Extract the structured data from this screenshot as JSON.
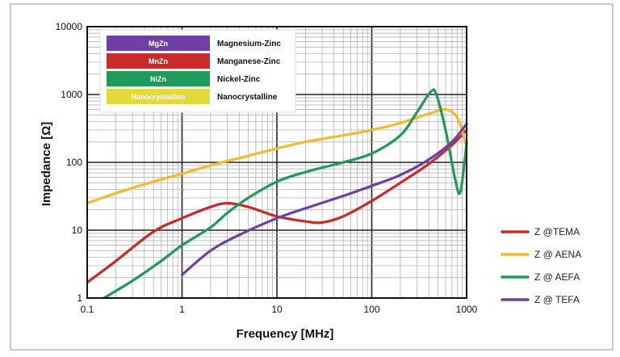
{
  "chart_data": {
    "type": "line",
    "xlabel": "Frequency [MHz]",
    "ylabel": "Impedance [Ω]",
    "x_scale": "log",
    "y_scale": "log",
    "xlim": [
      0.1,
      1000
    ],
    "ylim": [
      1,
      10000
    ],
    "x_ticks": [
      "0.1",
      "1",
      "10",
      "100",
      "1000"
    ],
    "y_ticks": [
      "1",
      "10",
      "100",
      "1000",
      "10000"
    ],
    "grid": true,
    "legend_position": "right",
    "material_legend": [
      {
        "code": "MgZn",
        "name": "Magnesium-Zinc",
        "color": "#6f3fa3"
      },
      {
        "code": "MnZn",
        "name": "Manganese-Zinc",
        "color": "#c92a2a"
      },
      {
        "code": "NiZn",
        "name": "Nickel-Zinc",
        "color": "#1f9a5b"
      },
      {
        "code": "Nanocrystalline",
        "name": "Nanocrystalline",
        "color": "#e2d93a"
      }
    ],
    "series": [
      {
        "name": "Z @TEMA",
        "color": "#c92a2a",
        "points": [
          [
            0.1,
            1.7
          ],
          [
            0.2,
            3.5
          ],
          [
            0.5,
            9.5
          ],
          [
            1,
            15
          ],
          [
            2,
            22
          ],
          [
            3,
            25
          ],
          [
            5,
            22
          ],
          [
            10,
            16
          ],
          [
            20,
            13.5
          ],
          [
            30,
            13
          ],
          [
            50,
            16
          ],
          [
            100,
            27
          ],
          [
            200,
            50
          ],
          [
            400,
            95
          ],
          [
            700,
            180
          ],
          [
            1000,
            300
          ]
        ]
      },
      {
        "name": "Z @ AENA",
        "color": "#f5b82e",
        "points": [
          [
            0.1,
            25
          ],
          [
            0.2,
            35
          ],
          [
            0.5,
            52
          ],
          [
            1,
            68
          ],
          [
            2,
            90
          ],
          [
            5,
            125
          ],
          [
            10,
            160
          ],
          [
            20,
            200
          ],
          [
            50,
            250
          ],
          [
            100,
            300
          ],
          [
            200,
            380
          ],
          [
            400,
            520
          ],
          [
            600,
            600
          ],
          [
            800,
            450
          ],
          [
            1000,
            170
          ]
        ]
      },
      {
        "name": "Z @ AEFA",
        "color": "#1f9a5b",
        "points": [
          [
            0.15,
            1
          ],
          [
            0.3,
            1.8
          ],
          [
            0.6,
            3.5
          ],
          [
            1,
            6
          ],
          [
            2,
            11
          ],
          [
            3,
            18
          ],
          [
            5,
            30
          ],
          [
            10,
            52
          ],
          [
            20,
            72
          ],
          [
            50,
            100
          ],
          [
            100,
            135
          ],
          [
            200,
            250
          ],
          [
            300,
            550
          ],
          [
            420,
            1100
          ],
          [
            480,
            1000
          ],
          [
            600,
            300
          ],
          [
            750,
            60
          ],
          [
            850,
            35
          ],
          [
            950,
            100
          ],
          [
            1000,
            200
          ]
        ]
      },
      {
        "name": "Z @ TEFA",
        "color": "#6f3fa3",
        "points": [
          [
            1,
            2.2
          ],
          [
            2,
            5
          ],
          [
            4,
            8.5
          ],
          [
            10,
            15
          ],
          [
            20,
            21
          ],
          [
            50,
            32
          ],
          [
            100,
            45
          ],
          [
            200,
            65
          ],
          [
            400,
            110
          ],
          [
            700,
            200
          ],
          [
            1000,
            370
          ]
        ]
      }
    ]
  }
}
